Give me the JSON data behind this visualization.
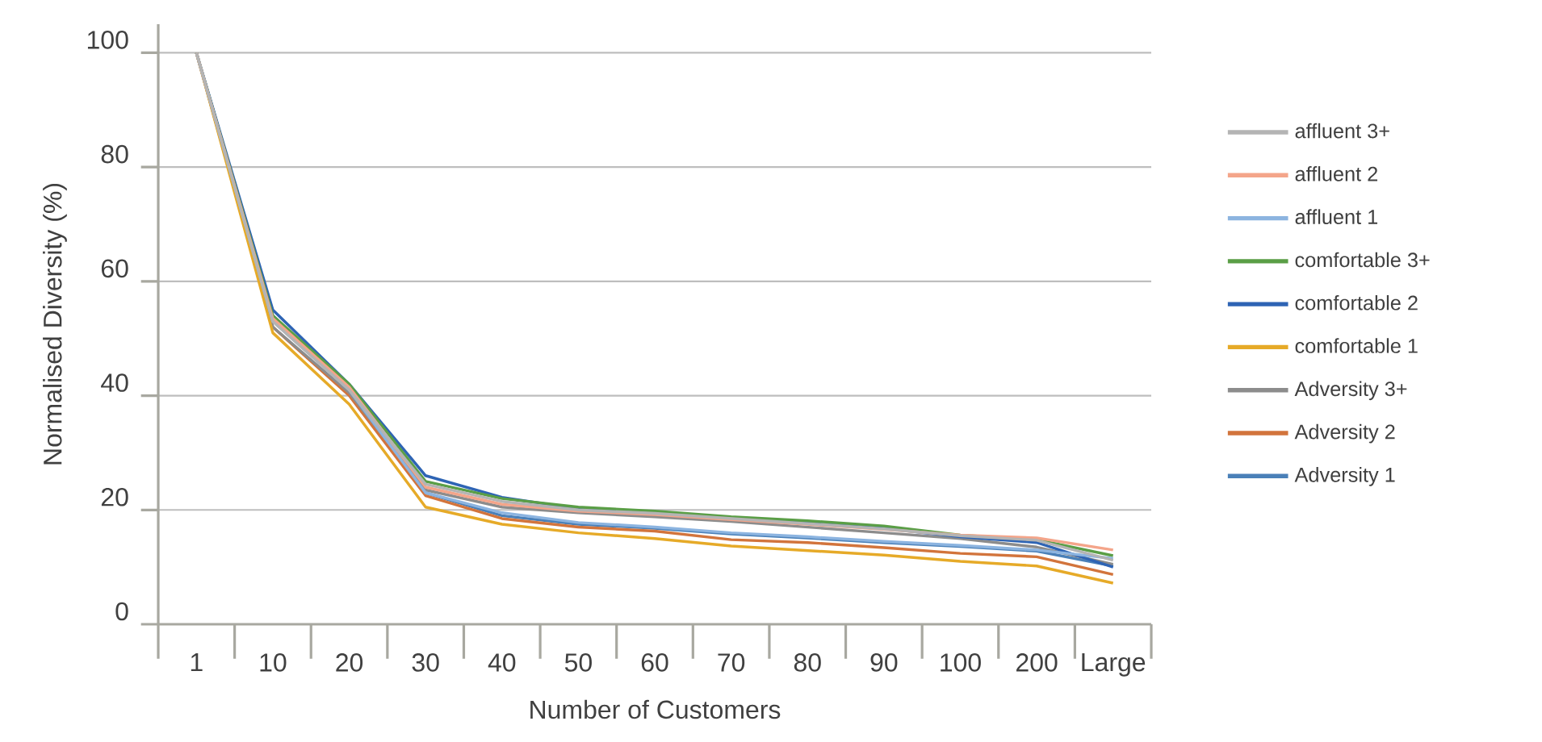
{
  "chart_data": {
    "type": "line",
    "xlabel": "Number of Customers",
    "ylabel": "Normalised Diversity (%)",
    "categories": [
      "1",
      "10",
      "20",
      "30",
      "40",
      "50",
      "60",
      "70",
      "80",
      "90",
      "100",
      "200",
      "Large"
    ],
    "ylim": [
      0,
      105
    ],
    "yticks": [
      0,
      20,
      40,
      60,
      80,
      100
    ],
    "grid": "y",
    "legend": "right",
    "line_style": "solid",
    "series": [
      {
        "name": "affluent 3+",
        "color": "#b4b4b4",
        "values": [
          100,
          53,
          41,
          24.5,
          21.5,
          20,
          19.4,
          18.5,
          17.6,
          16.7,
          15.5,
          14.7,
          11.2
        ]
      },
      {
        "name": "affluent 2",
        "color": "#f4a58a",
        "values": [
          100,
          53.5,
          41.5,
          24,
          21,
          19.8,
          19.2,
          18.3,
          17.5,
          16.6,
          15.6,
          15.1,
          13
        ]
      },
      {
        "name": "affluent 1",
        "color": "#8cb4e0",
        "values": [
          100,
          53,
          41,
          23,
          19.5,
          17.8,
          17,
          16,
          15.3,
          14.5,
          13.8,
          13,
          11.5
        ]
      },
      {
        "name": "comfortable 3+",
        "color": "#5a9e46",
        "values": [
          100,
          54,
          42,
          25,
          22,
          20.5,
          19.8,
          18.8,
          18.1,
          17.2,
          15.6,
          14.8,
          12
        ]
      },
      {
        "name": "comfortable 2",
        "color": "#2e64b4",
        "values": [
          100,
          55,
          42,
          26,
          22.2,
          20.2,
          19.3,
          18.5,
          17.7,
          16.8,
          15.3,
          14.3,
          10
        ]
      },
      {
        "name": "comfortable 1",
        "color": "#e6aa28",
        "values": [
          100,
          51,
          38.5,
          20.5,
          17.5,
          16,
          15,
          13.7,
          12.9,
          12.1,
          11,
          10.2,
          7.2
        ]
      },
      {
        "name": "Adversity 3+",
        "color": "#8c8c8c",
        "values": [
          100,
          52,
          40.5,
          23.5,
          20.5,
          19.5,
          18.8,
          18,
          17,
          16,
          15,
          13.5,
          10.5
        ]
      },
      {
        "name": "Adversity 2",
        "color": "#d2743c",
        "values": [
          100,
          52,
          40,
          22.5,
          18.5,
          17,
          16.3,
          14.8,
          14.3,
          13.4,
          12.4,
          11.8,
          8.7
        ]
      },
      {
        "name": "Adversity 1",
        "color": "#4a80b8",
        "values": [
          100,
          54,
          41,
          23,
          19,
          17.5,
          16.8,
          15.8,
          15.1,
          14.3,
          13.6,
          12.8,
          10.2
        ]
      }
    ]
  }
}
